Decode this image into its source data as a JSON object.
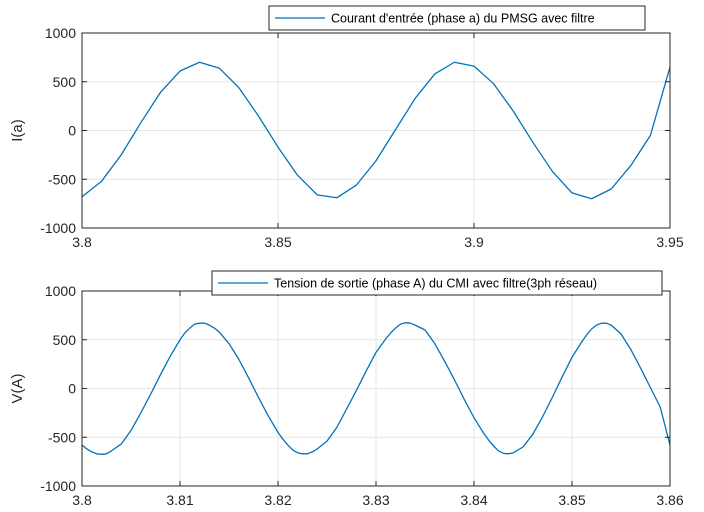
{
  "chart_data": [
    {
      "type": "line",
      "title": "",
      "xlabel": "",
      "ylabel": "I(a)",
      "xlim": [
        3.8,
        3.95
      ],
      "ylim": [
        -1000,
        1000
      ],
      "xticks": [
        3.8,
        3.85,
        3.9,
        3.95
      ],
      "xtick_labels": [
        "3.8",
        "3.85",
        "3.9",
        "3.95"
      ],
      "yticks": [
        -1000,
        -500,
        0,
        500,
        1000
      ],
      "ytick_labels": [
        "-1000",
        "-500",
        "0",
        "500",
        "1000"
      ],
      "grid": true,
      "legend_position": "top-right",
      "series": [
        {
          "name": "Courant d'entrée (phase a) du PMSG avec filtre",
          "color": "#0072bd",
          "x": [
            3.8,
            3.805,
            3.81,
            3.815,
            3.82,
            3.825,
            3.83,
            3.835,
            3.84,
            3.845,
            3.85,
            3.855,
            3.86,
            3.865,
            3.87,
            3.875,
            3.88,
            3.885,
            3.89,
            3.895,
            3.9,
            3.905,
            3.91,
            3.915,
            3.92,
            3.925,
            3.93,
            3.935,
            3.94,
            3.945,
            3.95
          ],
          "y": [
            -680,
            -520,
            -250,
            80,
            390,
            610,
            700,
            640,
            440,
            150,
            -170,
            -460,
            -660,
            -690,
            -560,
            -310,
            10,
            330,
            580,
            700,
            660,
            480,
            200,
            -120,
            -420,
            -640,
            -700,
            -600,
            -360,
            -50,
            650
          ]
        }
      ]
    },
    {
      "type": "line",
      "title": "",
      "xlabel": "",
      "ylabel": "V(A)",
      "xlim": [
        3.8,
        3.86
      ],
      "ylim": [
        -1000,
        1000
      ],
      "xticks": [
        3.8,
        3.81,
        3.82,
        3.83,
        3.84,
        3.85,
        3.86
      ],
      "xtick_labels": [
        "3.8",
        "3.81",
        "3.82",
        "3.83",
        "3.84",
        "3.85",
        "3.86"
      ],
      "yticks": [
        -1000,
        -500,
        0,
        500,
        1000
      ],
      "ytick_labels": [
        "-1000",
        "-500",
        "0",
        "500",
        "1000"
      ],
      "grid": true,
      "legend_position": "top-right",
      "series": [
        {
          "name": "Tension de sortie (phase A) du CMI avec filtre(3ph réseau)",
          "color": "#0072bd",
          "x": [
            3.8,
            3.8005,
            3.801,
            3.8015,
            3.802,
            3.8025,
            3.803,
            3.804,
            3.805,
            3.806,
            3.807,
            3.808,
            3.809,
            3.81,
            3.8105,
            3.811,
            3.8115,
            3.812,
            3.8125,
            3.813,
            3.8135,
            3.814,
            3.815,
            3.816,
            3.817,
            3.818,
            3.819,
            3.82,
            3.8205,
            3.821,
            3.8215,
            3.822,
            3.8225,
            3.823,
            3.8235,
            3.824,
            3.825,
            3.826,
            3.827,
            3.828,
            3.829,
            3.83,
            3.8305,
            3.831,
            3.8315,
            3.832,
            3.8325,
            3.833,
            3.8335,
            3.834,
            3.835,
            3.836,
            3.837,
            3.838,
            3.839,
            3.84,
            3.8405,
            3.841,
            3.8415,
            3.842,
            3.8425,
            3.843,
            3.8435,
            3.844,
            3.845,
            3.846,
            3.847,
            3.848,
            3.849,
            3.85,
            3.8505,
            3.851,
            3.8515,
            3.852,
            3.8525,
            3.853,
            3.8535,
            3.854,
            3.855,
            3.856,
            3.857,
            3.858,
            3.859,
            3.86
          ],
          "y": [
            -580,
            -620,
            -650,
            -670,
            -675,
            -670,
            -640,
            -570,
            -430,
            -250,
            -60,
            140,
            330,
            500,
            570,
            620,
            660,
            670,
            670,
            650,
            620,
            580,
            460,
            300,
            110,
            -90,
            -280,
            -450,
            -520,
            -580,
            -630,
            -660,
            -670,
            -670,
            -650,
            -620,
            -540,
            -400,
            -210,
            -20,
            180,
            370,
            440,
            510,
            570,
            620,
            660,
            675,
            670,
            650,
            600,
            460,
            280,
            90,
            -110,
            -300,
            -380,
            -460,
            -530,
            -590,
            -640,
            -665,
            -670,
            -660,
            -600,
            -470,
            -290,
            -90,
            120,
            320,
            400,
            480,
            550,
            610,
            650,
            670,
            670,
            650,
            560,
            400,
            210,
            10,
            -190,
            -580
          ]
        }
      ]
    }
  ]
}
